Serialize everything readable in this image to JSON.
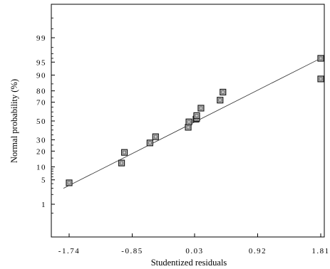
{
  "chart_data": {
    "type": "scatter",
    "title": "",
    "xlabel": "Studentized residuals",
    "ylabel": "Normal probability (%)",
    "xlim": [
      -1.74,
      1.81
    ],
    "x_ticks": [
      "-1.74",
      "-0.85",
      "0.03",
      "0.92",
      "1.81"
    ],
    "y_ticks": [
      "1",
      "5",
      "10",
      "20",
      "30",
      "50",
      "70",
      "80",
      "90",
      "95",
      "99"
    ],
    "y_scale": "normal-probability",
    "grid": false,
    "points": [
      {
        "x": -1.74,
        "y": 4.2
      },
      {
        "x": -1.0,
        "y": 12
      },
      {
        "x": -0.96,
        "y": 19
      },
      {
        "x": -0.6,
        "y": 27
      },
      {
        "x": -0.52,
        "y": 33
      },
      {
        "x": -0.06,
        "y": 43
      },
      {
        "x": -0.05,
        "y": 49
      },
      {
        "x": 0.05,
        "y": 52
      },
      {
        "x": 0.06,
        "y": 53
      },
      {
        "x": 0.06,
        "y": 56
      },
      {
        "x": 0.12,
        "y": 64
      },
      {
        "x": 0.39,
        "y": 72
      },
      {
        "x": 0.43,
        "y": 79
      },
      {
        "x": 1.81,
        "y": 88
      },
      {
        "x": 1.81,
        "y": 96
      }
    ],
    "fit_line": {
      "x": [
        -1.82,
        1.81
      ],
      "y": [
        3.0,
        96.0
      ]
    }
  }
}
